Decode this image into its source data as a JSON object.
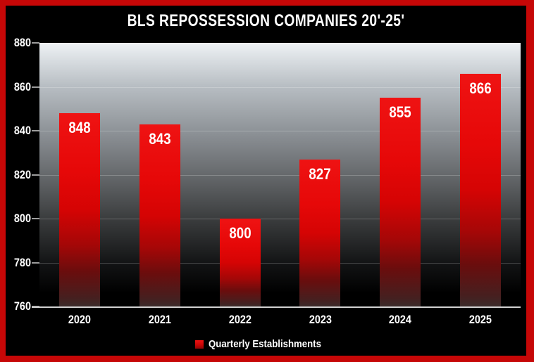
{
  "title": "BLS REPOSSESSION COMPANIES 20'-25'",
  "chart_data": {
    "type": "bar",
    "title": "BLS REPOSSESSION COMPANIES 20'-25'",
    "categories": [
      "2020",
      "2021",
      "2022",
      "2023",
      "2024",
      "2025"
    ],
    "series": [
      {
        "name": "Quarterly Establishments",
        "values": [
          848,
          843,
          800,
          827,
          855,
          866
        ]
      }
    ],
    "xlabel": "",
    "ylabel": "",
    "ylim": [
      760,
      880
    ],
    "yticks": [
      760,
      780,
      800,
      820,
      840,
      860,
      880
    ],
    "grid": true,
    "data_labels": true,
    "legend_position": "bottom"
  },
  "legend": {
    "label": "Quarterly Establishments"
  },
  "colors": {
    "frame_border": "#c60707",
    "chart_background": "#000000",
    "bar_red": "#ea1111",
    "label_text": "#ffffff",
    "axis_line": "#d2d2d2",
    "plot_gradient_top": "#eef2f5",
    "plot_gradient_bottom": "#000000"
  }
}
